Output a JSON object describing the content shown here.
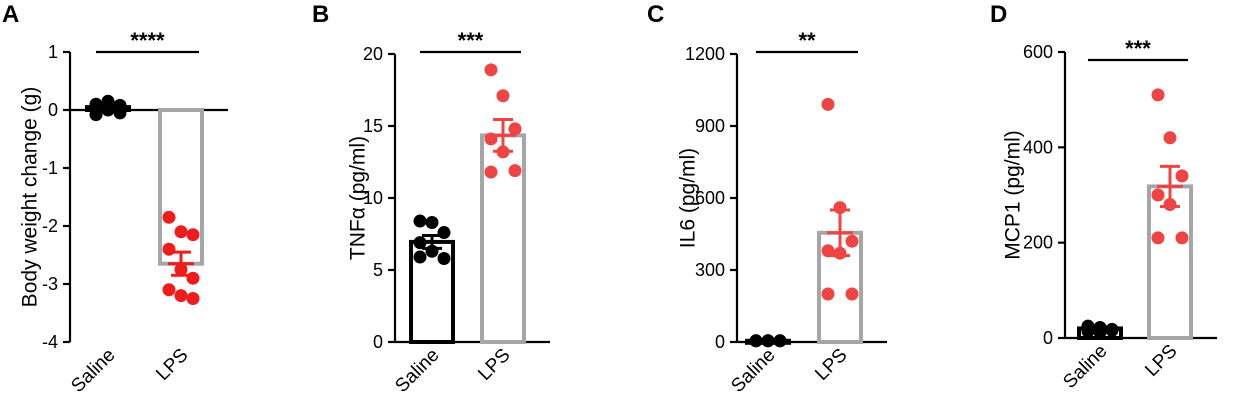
{
  "chart_data": [
    {
      "type": "bar",
      "panel": "A",
      "ylabel": "Body weight change (g)",
      "ylim": [
        -4,
        1
      ],
      "yticks": [
        1,
        0,
        -1,
        -2,
        -3,
        -4
      ],
      "tick_labels": [
        "1",
        "0",
        "-1",
        "-2",
        "-3",
        "-4"
      ],
      "categories": [
        "Saline",
        "LPS"
      ],
      "significance": "****",
      "series": [
        {
          "name": "Saline",
          "bar": 0.05,
          "sem": 0.03,
          "color": "#000000",
          "bar_color": "#000000",
          "points": [
            0.1,
            0.15,
            0.08,
            0.05,
            0.0,
            -0.05,
            -0.08,
            0.12,
            0.02
          ]
        },
        {
          "name": "LPS",
          "bar": -2.65,
          "sem": 0.2,
          "color": "#ee1c1c",
          "bar_color": "#a6a6a6",
          "points": [
            -1.85,
            -2.1,
            -2.15,
            -2.4,
            -2.75,
            -2.9,
            -3.1,
            -3.2,
            -3.25
          ]
        }
      ]
    },
    {
      "type": "bar",
      "panel": "B",
      "ylabel": "TNFα (pg/ml)",
      "ylim": [
        0,
        20
      ],
      "yticks": [
        0,
        5,
        10,
        15,
        20
      ],
      "tick_labels": [
        "0",
        "5",
        "10",
        "15",
        "20"
      ],
      "categories": [
        "Saline",
        "LPS"
      ],
      "significance": "***",
      "series": [
        {
          "name": "Saline",
          "bar": 6.95,
          "sem": 0.45,
          "color": "#000000",
          "bar_color": "#000000",
          "points": [
            8.4,
            8.3,
            7.6,
            6.9,
            6.3,
            5.8,
            5.9
          ]
        },
        {
          "name": "LPS",
          "bar": 14.35,
          "sem": 1.1,
          "color": "#ee4444",
          "bar_color": "#a6a6a6",
          "points": [
            18.9,
            17.1,
            14.8,
            14.1,
            13.2,
            11.9,
            11.8
          ]
        }
      ]
    },
    {
      "type": "bar",
      "panel": "C",
      "ylabel": "IL6 (pg/ml)",
      "ylim": [
        0,
        1200
      ],
      "yticks": [
        0,
        300,
        600,
        900,
        1200
      ],
      "tick_labels": [
        "0",
        "300",
        "600",
        "900",
        "1200"
      ],
      "categories": [
        "Saline",
        "LPS"
      ],
      "significance": "**",
      "series": [
        {
          "name": "Saline",
          "bar": 5,
          "sem": 2,
          "color": "#000000",
          "bar_color": "#000000",
          "points": [
            5,
            5,
            5,
            5,
            5,
            5
          ]
        },
        {
          "name": "LPS",
          "bar": 455,
          "sem": 95,
          "color": "#ee4444",
          "bar_color": "#a6a6a6",
          "points": [
            990,
            560,
            420,
            380,
            370,
            200,
            200
          ]
        }
      ]
    },
    {
      "type": "bar",
      "panel": "D",
      "ylabel": "MCP1 (pg/ml)",
      "ylim": [
        0,
        600
      ],
      "yticks": [
        0,
        200,
        400,
        600
      ],
      "tick_labels": [
        "0",
        "200",
        "400",
        "600"
      ],
      "categories": [
        "Saline",
        "LPS"
      ],
      "significance": "***",
      "series": [
        {
          "name": "Saline",
          "bar": 20,
          "sem": 3,
          "color": "#000000",
          "bar_color": "#000000",
          "points": [
            25,
            22,
            18,
            20,
            15,
            16,
            14,
            12
          ]
        },
        {
          "name": "LPS",
          "bar": 318,
          "sem": 42,
          "color": "#ee4444",
          "bar_color": "#a6a6a6",
          "points": [
            510,
            420,
            340,
            300,
            280,
            210,
            210
          ]
        }
      ]
    }
  ]
}
